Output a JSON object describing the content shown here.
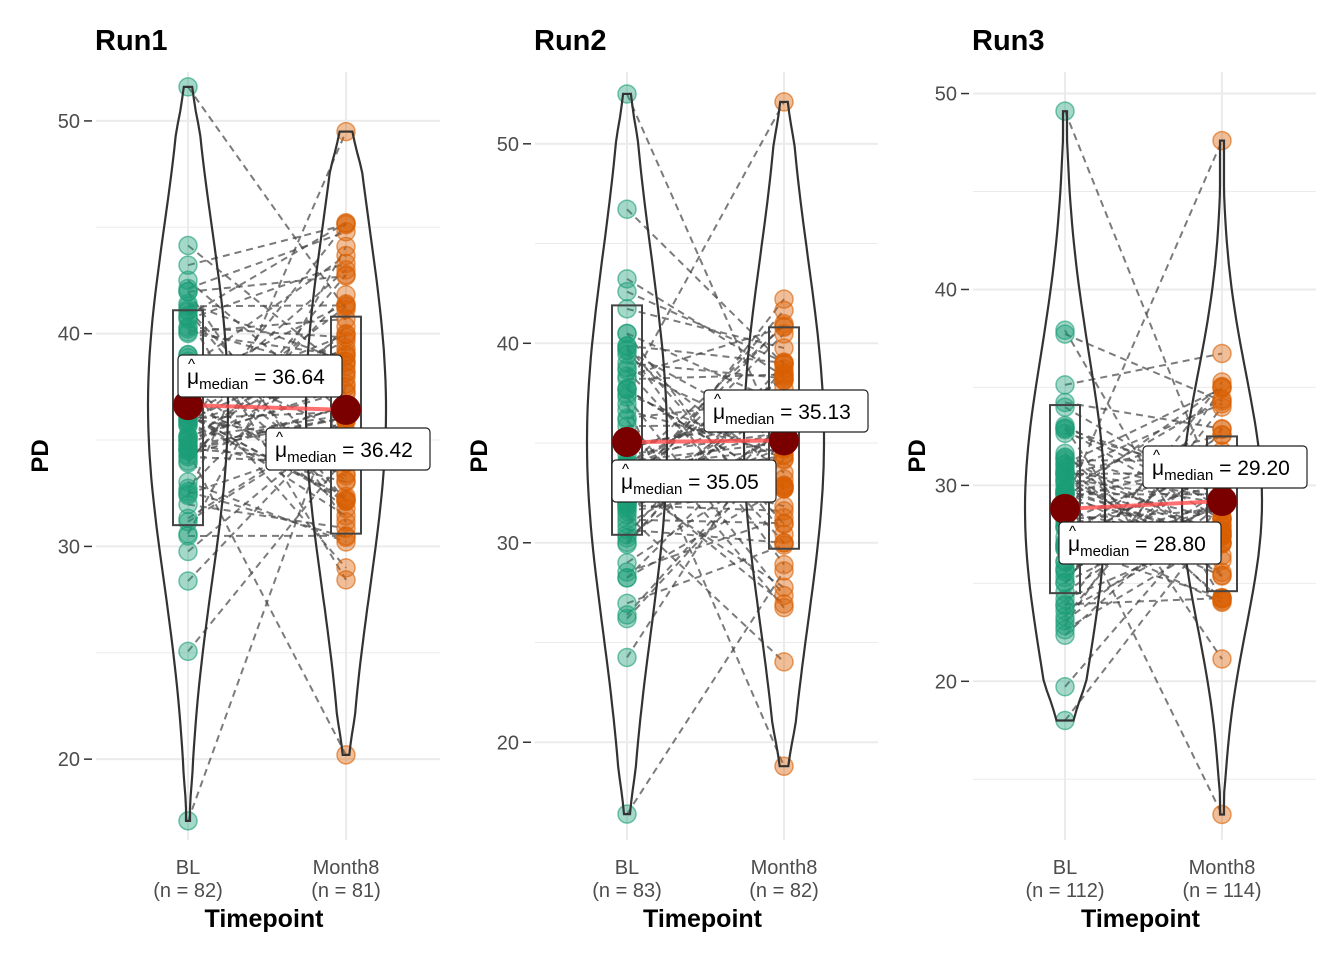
{
  "colors": {
    "bl_point": "#1b9e77",
    "m8_point": "#d95f02",
    "median_point": "#7a0000",
    "median_line": "#ff4d4d",
    "grid": "#ebebeb",
    "violin": "#333333",
    "paired_line": "#444444"
  },
  "chart_data": [
    {
      "type": "violin-paired",
      "title": "Run1",
      "xlabel": "Timepoint",
      "ylabel": "PD",
      "ylim": [
        16.2,
        52.3
      ],
      "yticks": [
        20,
        30,
        40,
        50
      ],
      "categories": [
        "BL",
        "Month8"
      ],
      "counts": [
        "(n = 82)",
        "(n = 81)"
      ],
      "medians": [
        36.64,
        36.42
      ],
      "median_labels": [
        "36.64",
        "36.42"
      ],
      "ranges": [
        [
          17.1,
          51.6
        ],
        [
          20.2,
          49.5
        ]
      ],
      "quartiles": [
        [
          31.0,
          41.1
        ],
        [
          30.6,
          40.8
        ]
      ],
      "seed": 11
    },
    {
      "type": "violin-paired",
      "title": "Run2",
      "xlabel": "Timepoint",
      "ylabel": "PD",
      "ylim": [
        15.1,
        53.6
      ],
      "yticks": [
        20,
        30,
        40,
        50
      ],
      "categories": [
        "BL",
        "Month8"
      ],
      "counts": [
        "(n = 83)",
        "(n = 82)"
      ],
      "medians": [
        35.05,
        35.13
      ],
      "median_labels": [
        "35.05",
        "35.13"
      ],
      "ranges": [
        [
          16.4,
          52.5
        ],
        [
          18.8,
          52.1
        ]
      ],
      "quartiles": [
        [
          30.4,
          41.9
        ],
        [
          29.7,
          40.8
        ]
      ],
      "seed": 23
    },
    {
      "type": "violin-paired",
      "title": "Run3",
      "xlabel": "Timepoint",
      "ylabel": "PD",
      "ylim": [
        11.9,
        51.1
      ],
      "yticks": [
        20,
        30,
        40,
        50
      ],
      "categories": [
        "BL",
        "Month8"
      ],
      "counts": [
        "(n = 112)",
        "(n = 114)"
      ],
      "medians": [
        28.8,
        29.2
      ],
      "median_labels": [
        "28.80",
        "29.20"
      ],
      "ranges": [
        [
          18.0,
          49.1
        ],
        [
          13.2,
          47.6
        ]
      ],
      "quartiles": [
        [
          24.5,
          34.1
        ],
        [
          24.6,
          32.5
        ]
      ],
      "seed": 37
    }
  ],
  "stat_symbol": "μ",
  "stat_subscript": "median"
}
